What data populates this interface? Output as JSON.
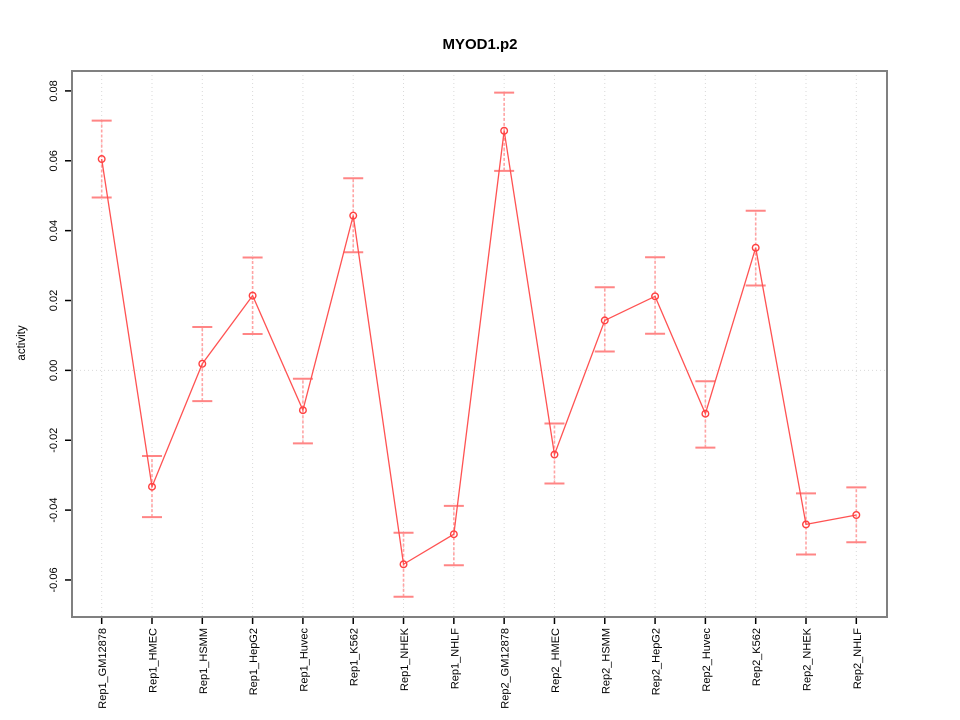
{
  "chart_data": {
    "type": "line",
    "title": "MYOD1.p2",
    "ylabel": "activity",
    "xlabel": "",
    "legend": "none",
    "grid": "vertical dotted gridlines at each category; dotted horizontal line at 0",
    "categories": [
      "Rep1_GM12878",
      "Rep1_HMEC",
      "Rep1_HSMM",
      "Rep1_HepG2",
      "Rep1_Huvec",
      "Rep1_K562",
      "Rep1_NHEK",
      "Rep1_NHLF",
      "Rep2_GM12878",
      "Rep2_HMEC",
      "Rep2_HSMM",
      "Rep2_HepG2",
      "Rep2_Huvec",
      "Rep2_K562",
      "Rep2_NHEK",
      "Rep2_NHLF"
    ],
    "series": [
      {
        "name": "activity",
        "values": [
          0.0605,
          -0.0333,
          0.0019,
          0.0214,
          -0.0114,
          0.0443,
          -0.0555,
          -0.0469,
          0.0686,
          -0.0241,
          0.0143,
          0.0212,
          -0.0124,
          0.0351,
          -0.0441,
          -0.0414
        ],
        "error_low": [
          0.0495,
          -0.042,
          -0.0088,
          0.0104,
          -0.0209,
          0.0338,
          -0.0648,
          -0.0558,
          0.0571,
          -0.0324,
          0.0054,
          0.0105,
          -0.0221,
          0.0243,
          -0.0527,
          -0.0492
        ],
        "error_high": [
          0.0715,
          -0.0245,
          0.0124,
          0.0323,
          -0.0024,
          0.055,
          -0.0465,
          -0.0388,
          0.0795,
          -0.0152,
          0.0238,
          0.0324,
          -0.0031,
          0.0457,
          -0.0352,
          -0.0335
        ]
      }
    ],
    "yticks": [
      0.08,
      0.06,
      0.04,
      0.02,
      0.0,
      -0.02,
      -0.04,
      -0.06
    ],
    "ylim": [
      -0.0706,
      0.0857
    ],
    "colors": {
      "point": "#ff4040",
      "line": "#ff5252",
      "error_bar": "#ffa3a3",
      "error_cap": "#ff8585",
      "grid": "#d9d9d9",
      "frame": "#808080",
      "tick": "#000000"
    }
  }
}
